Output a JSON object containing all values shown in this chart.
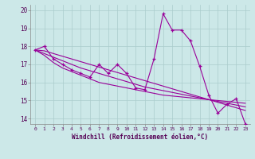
{
  "xlabel": "Windchill (Refroidissement éolien,°C)",
  "background_color": "#cce8e8",
  "grid_color": "#aacccc",
  "line_color": "#990099",
  "x_ticks": [
    0,
    1,
    2,
    3,
    4,
    5,
    6,
    7,
    8,
    9,
    10,
    11,
    12,
    13,
    14,
    15,
    16,
    17,
    18,
    19,
    20,
    21,
    22,
    23
  ],
  "y_ticks": [
    14,
    15,
    16,
    17,
    18,
    19,
    20
  ],
  "ylim": [
    13.7,
    20.3
  ],
  "xlim": [
    -0.5,
    23.5
  ],
  "series": [
    [
      17.8,
      18.0,
      17.3,
      17.0,
      16.7,
      16.5,
      16.3,
      17.0,
      16.5,
      17.0,
      16.5,
      15.7,
      15.6,
      17.3,
      19.8,
      18.9,
      18.9,
      18.3,
      16.9,
      15.3,
      14.3,
      14.8,
      15.1,
      13.7
    ],
    [
      17.8,
      17.5,
      17.1,
      16.8,
      16.6,
      16.4,
      16.2,
      16.0,
      15.9,
      15.8,
      15.7,
      15.6,
      15.5,
      15.4,
      15.3,
      15.25,
      15.2,
      15.15,
      15.1,
      15.05,
      15.0,
      14.95,
      14.9,
      14.85
    ],
    [
      17.8,
      17.6,
      17.4,
      17.2,
      17.0,
      16.8,
      16.65,
      16.5,
      16.35,
      16.2,
      16.05,
      15.9,
      15.75,
      15.65,
      15.55,
      15.45,
      15.35,
      15.25,
      15.15,
      15.05,
      14.95,
      14.85,
      14.75,
      14.65
    ],
    [
      17.8,
      17.75,
      17.6,
      17.45,
      17.3,
      17.15,
      17.0,
      16.85,
      16.7,
      16.55,
      16.4,
      16.25,
      16.1,
      15.95,
      15.8,
      15.65,
      15.5,
      15.35,
      15.2,
      15.05,
      14.9,
      14.75,
      14.6,
      14.45
    ]
  ]
}
